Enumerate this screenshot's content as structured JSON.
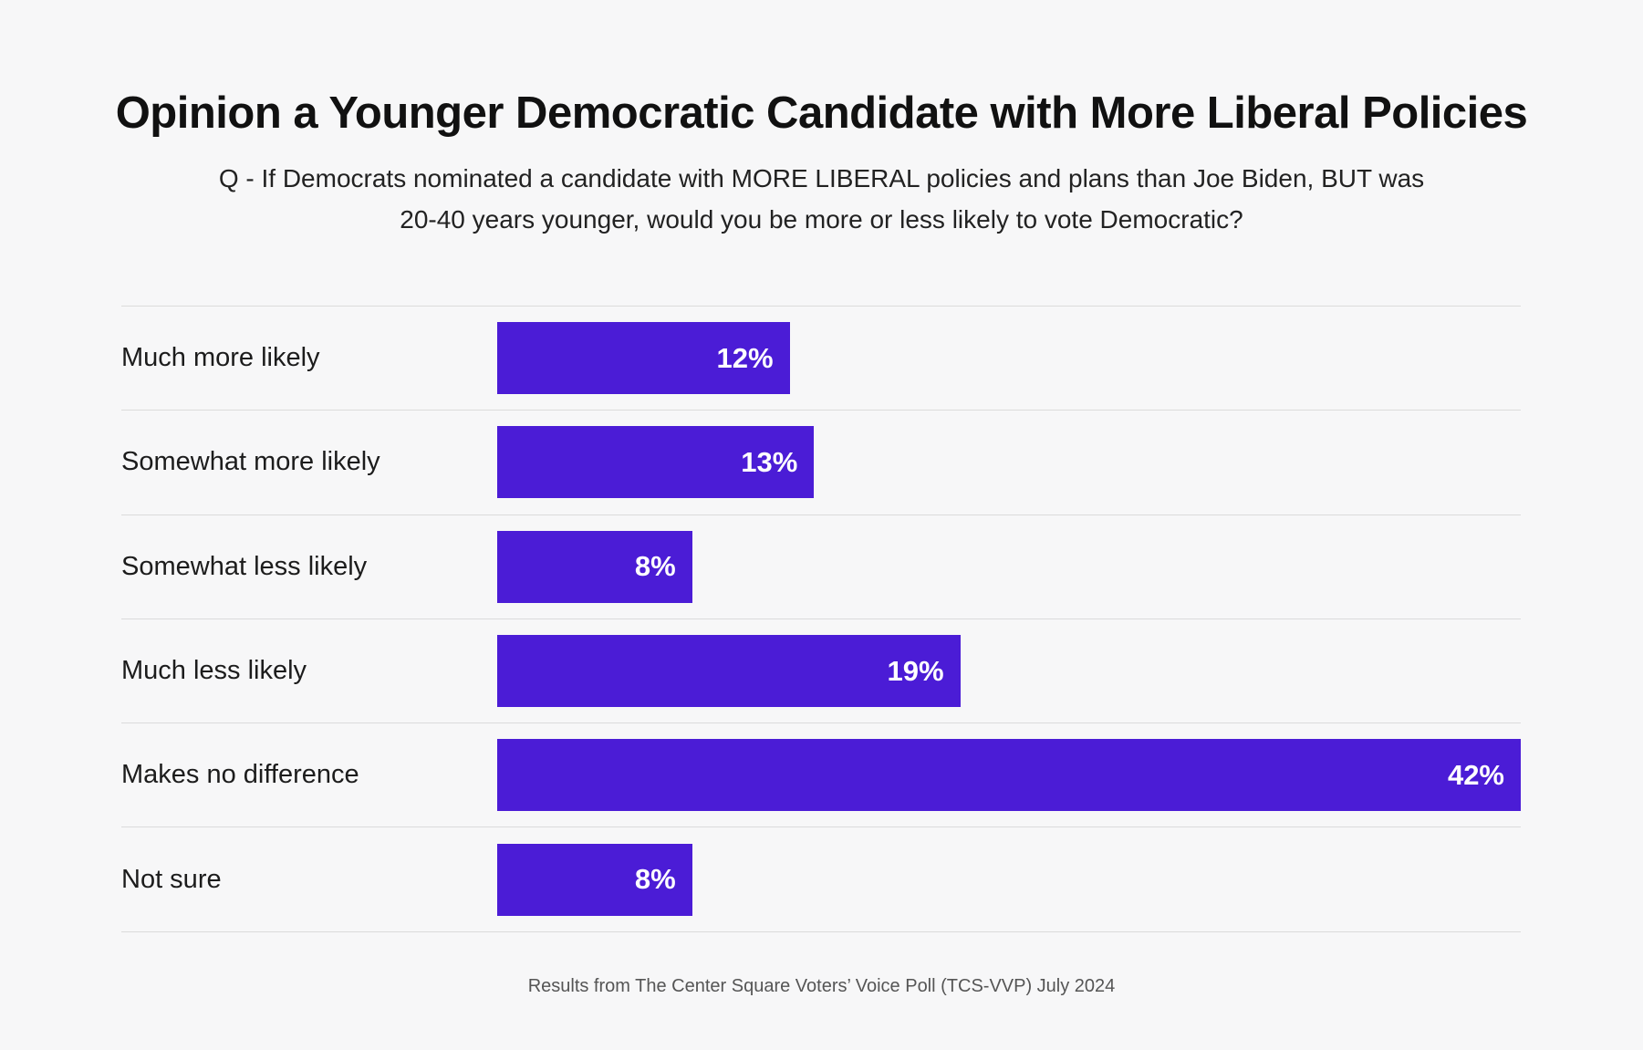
{
  "page": {
    "title": "Opinion a Younger Democratic Candidate with More Liberal Policies",
    "subtitle_lines": [
      "Q -  If Democrats nominated a candidate with MORE LIBERAL policies and plans than Joe Biden, BUT was",
      "20-40 years younger, would you be more or less likely to vote Democratic?"
    ],
    "footer": "Results from The Center Square Voters’ Voice Poll (TCS-VVP) July 2024"
  },
  "colors": {
    "background": "#F7F7F8",
    "bar": "#4B1CD6",
    "divider": "#DBDBDB",
    "label_text": "#1C1C1C",
    "value_text": "#FFFFFF",
    "footer_text": "#555555"
  },
  "chart_data": {
    "type": "bar",
    "orientation": "horizontal",
    "title": "Opinion a Younger Democratic Candidate with More Liberal Policies",
    "subtitle": "Q - If Democrats nominated a candidate with MORE LIBERAL policies and plans than Joe Biden, BUT was 20-40 years younger, would you be more or less likely to vote Democratic?",
    "source_note": "Results from The Center Square Voters’ Voice Poll (TCS-VVP) July 2024",
    "categories": [
      "Much more likely",
      "Somewhat more likely",
      "Somewhat less likely",
      "Much less likely",
      "Makes no difference",
      "Not sure"
    ],
    "values": [
      12,
      13,
      8,
      19,
      42,
      8
    ],
    "value_labels": [
      "12%",
      "13%",
      "8%",
      "19%",
      "42%",
      "8%"
    ],
    "xmax": 42,
    "value_label_position": "inside-end",
    "grid": "row-dividers",
    "legend": false,
    "axes_visible": false
  }
}
